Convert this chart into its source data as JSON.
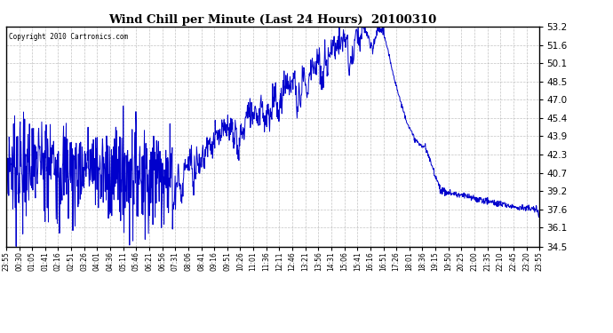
{
  "title": "Wind Chill per Minute (Last 24 Hours)  20100310",
  "copyright": "Copyright 2010 Cartronics.com",
  "line_color": "#0000cc",
  "background_color": "#ffffff",
  "grid_color": "#aaaaaa",
  "ylim": [
    34.5,
    53.2
  ],
  "yticks": [
    34.5,
    36.1,
    37.6,
    39.2,
    40.7,
    42.3,
    43.9,
    45.4,
    47.0,
    48.5,
    50.1,
    51.6,
    53.2
  ],
  "xtick_labels": [
    "23:55",
    "00:30",
    "01:05",
    "01:41",
    "02:16",
    "02:51",
    "03:26",
    "04:01",
    "04:36",
    "05:11",
    "05:46",
    "06:21",
    "06:56",
    "07:31",
    "08:06",
    "08:41",
    "09:16",
    "09:51",
    "10:26",
    "11:01",
    "11:36",
    "12:11",
    "12:46",
    "13:21",
    "13:56",
    "14:31",
    "15:06",
    "15:41",
    "16:16",
    "16:51",
    "17:26",
    "18:01",
    "18:36",
    "19:15",
    "19:50",
    "20:25",
    "21:00",
    "21:35",
    "22:10",
    "22:45",
    "23:20",
    "23:55"
  ]
}
